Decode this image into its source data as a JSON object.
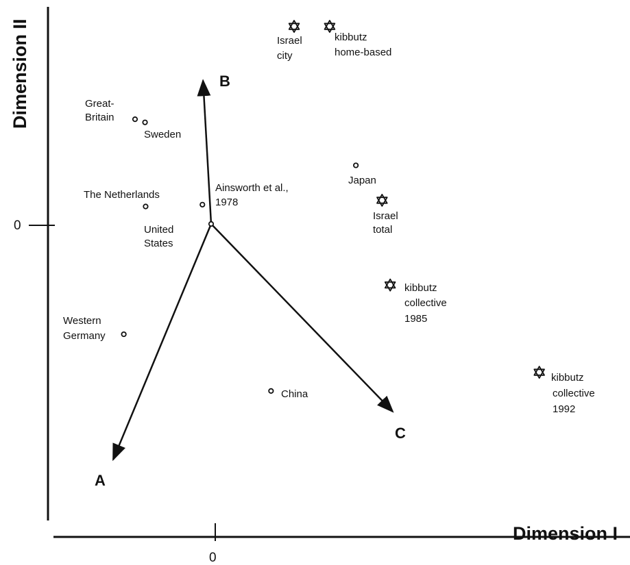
{
  "chart_data": {
    "type": "scatter",
    "title": "",
    "xlabel": "Dimension I",
    "ylabel": "Dimension II",
    "x_ticks": [
      "0"
    ],
    "y_ticks": [
      "0"
    ],
    "grid": false,
    "origin": [
      0,
      0
    ],
    "points": [
      {
        "label": [
          "Great-",
          "Britain"
        ],
        "x": -1.22,
        "y": 1.68,
        "marker": "circle"
      },
      {
        "label": [
          "Sweden"
        ],
        "x": -1.06,
        "y": 1.63,
        "marker": "circle"
      },
      {
        "label": [
          "The Netherlands"
        ],
        "x": -1.05,
        "y": 0.28,
        "marker": "circle"
      },
      {
        "label": [
          "United",
          "States"
        ],
        "x": 0,
        "y": 0,
        "marker": "circle"
      },
      {
        "label": [
          "Ainsworth et al.,",
          "1978"
        ],
        "x": -0.14,
        "y": 0.31,
        "marker": "circle"
      },
      {
        "label": [
          "Western",
          "Germany"
        ],
        "x": -1.4,
        "y": -1.77,
        "marker": "circle"
      },
      {
        "label": [
          "China"
        ],
        "x": 0.96,
        "y": -2.68,
        "marker": "circle"
      },
      {
        "label": [
          "Japan"
        ],
        "x": 2.32,
        "y": 0.94,
        "marker": "circle"
      },
      {
        "label": [
          "Israel",
          "total"
        ],
        "x": 2.74,
        "y": 0.38,
        "marker": "star"
      },
      {
        "label": [
          "Israel",
          "city"
        ],
        "x": 1.33,
        "y": 3.17,
        "marker": "star"
      },
      {
        "label": [
          "kibbutz",
          "home-based"
        ],
        "x": 1.9,
        "y": 3.17,
        "marker": "star"
      },
      {
        "label": [
          "kibbutz",
          "collective",
          "1985"
        ],
        "x": 2.87,
        "y": -0.98,
        "marker": "star"
      },
      {
        "label": [
          "kibbutz",
          "collective",
          "1992"
        ],
        "x": 5.26,
        "y": -2.38,
        "marker": "star"
      }
    ],
    "vectors": [
      {
        "label": "A",
        "x": -1.57,
        "y": -3.78
      },
      {
        "label": "B",
        "x": -0.13,
        "y": 2.3
      },
      {
        "label": "C",
        "x": 2.91,
        "y": -3.01
      }
    ]
  }
}
